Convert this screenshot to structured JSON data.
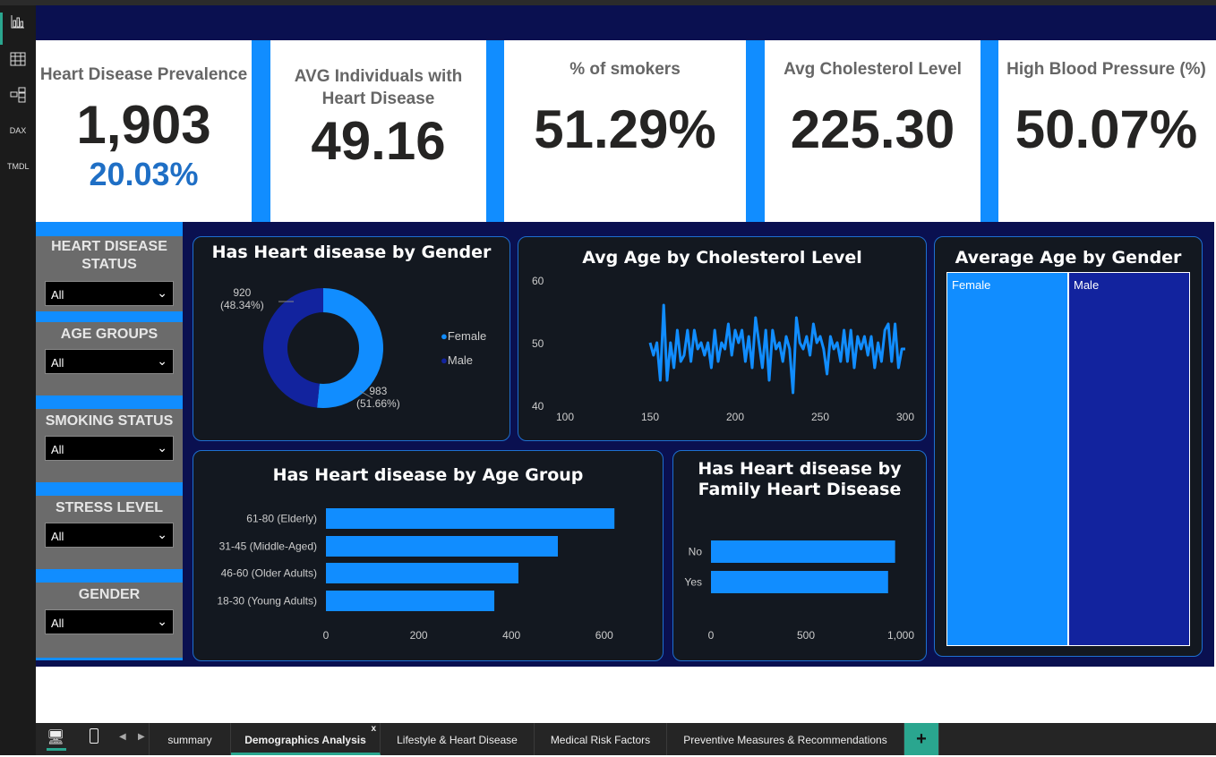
{
  "left_nav": [
    {
      "icon": "report-view-icon"
    },
    {
      "icon": "table-view-icon"
    },
    {
      "icon": "model-view-icon"
    },
    {
      "icon": "dax-query-icon",
      "label": "DAX"
    },
    {
      "icon": "tmdl-view-icon",
      "label": "TMDL"
    }
  ],
  "kpis": [
    {
      "title": "Heart Disease Prevalence",
      "value": "1,903",
      "sub": "20.03%"
    },
    {
      "title": "AVG Individuals with Heart Disease",
      "value": "49.16"
    },
    {
      "title": "% of smokers",
      "value": "51.29%"
    },
    {
      "title": "Avg Cholesterol Level",
      "value": "225.30"
    },
    {
      "title": "High Blood Pressure (%)",
      "value": "50.07%"
    }
  ],
  "slicers": [
    {
      "label": "HEART DISEASE STATUS",
      "value": "All"
    },
    {
      "label": "AGE GROUPS",
      "value": "All"
    },
    {
      "label": "SMOKING STATUS",
      "value": "All"
    },
    {
      "label": "STRESS LEVEL",
      "value": "All"
    },
    {
      "label": "GENDER",
      "value": "All"
    }
  ],
  "colors": {
    "accent": "#118dff",
    "navy": "#0a1050",
    "male": "#12239e",
    "panel": "#131820"
  },
  "chart_data": [
    {
      "type": "pie",
      "title": "Has Heart disease by Gender",
      "categories": [
        "Female",
        "Male"
      ],
      "values": [
        983,
        920
      ],
      "labels": [
        "983\n(51.66%)",
        "920\n(48.34%)"
      ],
      "label_lines": [
        [
          "983",
          "(51.66%)"
        ],
        [
          "920",
          "(48.34%)"
        ]
      ],
      "legend": "right",
      "donut": true
    },
    {
      "type": "line",
      "title": "Avg Age by Cholesterol Level",
      "xlim": [
        100,
        300
      ],
      "ylim": [
        40,
        60
      ],
      "xticks": [
        "100",
        "150",
        "200",
        "250",
        "300"
      ],
      "yticks": [
        "60",
        "50",
        "40"
      ],
      "x": [
        150,
        152,
        154,
        156,
        158,
        160,
        162,
        164,
        166,
        168,
        170,
        172,
        174,
        176,
        178,
        180,
        182,
        184,
        186,
        188,
        190,
        192,
        194,
        196,
        198,
        200,
        202,
        204,
        206,
        208,
        210,
        212,
        214,
        216,
        218,
        220,
        222,
        224,
        226,
        228,
        230,
        232,
        234,
        236,
        238,
        240,
        242,
        244,
        246,
        248,
        250,
        252,
        254,
        256,
        258,
        260,
        262,
        264,
        266,
        268,
        270,
        272,
        274,
        276,
        278,
        280,
        282,
        284,
        286,
        288,
        290,
        292,
        294,
        296,
        298,
        300
      ],
      "y": [
        50,
        48,
        50,
        44,
        56,
        44,
        50,
        46,
        52,
        47,
        48,
        52,
        47,
        52,
        49,
        50,
        48,
        50,
        46,
        52,
        47,
        50,
        49,
        53,
        48,
        52,
        50,
        52,
        47,
        51,
        46,
        54,
        50,
        46,
        52,
        44,
        52,
        49,
        50,
        47,
        51,
        49,
        42,
        54,
        50,
        49,
        51,
        48,
        53,
        50,
        51,
        49,
        45,
        51,
        49,
        50,
        47,
        52,
        47,
        52,
        46,
        51,
        49,
        51,
        48,
        51,
        46,
        50,
        47,
        52,
        53,
        47,
        53,
        46,
        49,
        49
      ]
    },
    {
      "type": "treemap",
      "title": "Average Age by Gender",
      "categories": [
        "Female",
        "Male"
      ]
    },
    {
      "type": "bar",
      "orientation": "horizontal",
      "title": "Has Heart disease by Age Group",
      "categories": [
        "61-80 (Elderly)",
        "31-45 (Middle-Aged)",
        "46-60 (Older Adults)",
        "18-30 (Young Adults)"
      ],
      "values": [
        622,
        500,
        415,
        363
      ],
      "xlim": [
        0,
        650
      ],
      "xticks": [
        "0",
        "200",
        "400",
        "600"
      ]
    },
    {
      "type": "bar",
      "orientation": "horizontal",
      "title": "Has Heart disease by Family Heart Disease",
      "categories": [
        "No",
        "Yes"
      ],
      "values": [
        970,
        933
      ],
      "xlim": [
        0,
        1000
      ],
      "xticks": [
        "0",
        "500",
        "1,000"
      ]
    }
  ],
  "tabs": [
    {
      "label": "summary"
    },
    {
      "label": "Demographics Analysis",
      "active": true,
      "close": "x"
    },
    {
      "label": "Lifestyle & Heart Disease"
    },
    {
      "label": "Medical Risk Factors"
    },
    {
      "label": "Preventive Measures & Recommendations"
    }
  ],
  "add_tab": "+"
}
